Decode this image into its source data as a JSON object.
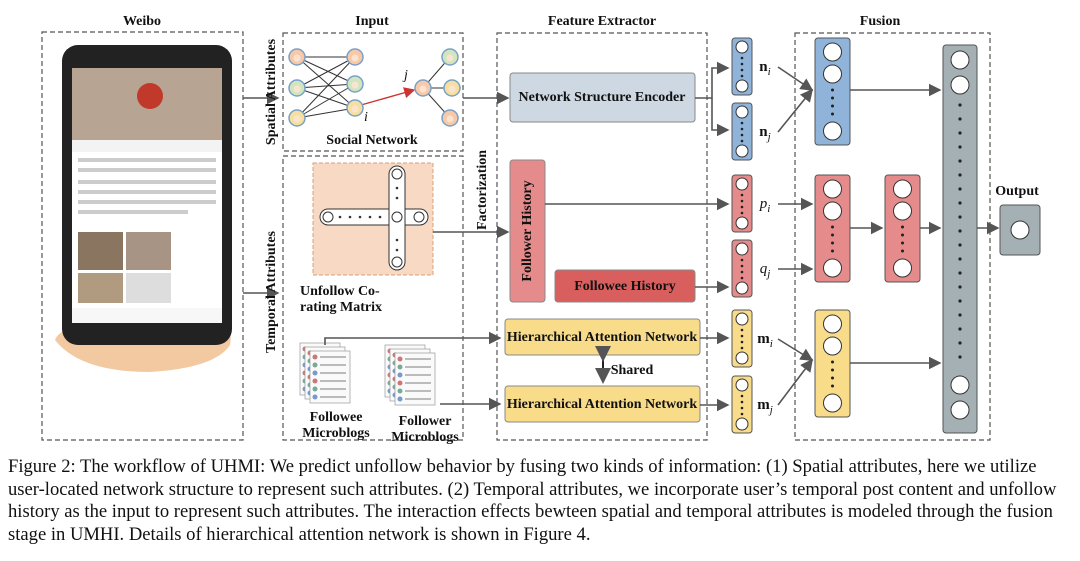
{
  "panels": {
    "weibo": "Weibo",
    "input": "Input",
    "feature_extractor": "Feature Extractor",
    "fusion": "Fusion"
  },
  "input": {
    "spatial_label": "Spatial Attributes",
    "temporal_label": "Temporal Attributes",
    "social_network": "Social Network",
    "node_i": "i",
    "node_j": "j",
    "co_rating_matrix": "Unfollow Co-rating Matrix",
    "followee_microblogs": "Followee Microblogs",
    "follower_microblogs": "Follower Microblogs"
  },
  "feature_extractor": {
    "factorization": "Factorization",
    "network_encoder": "Network Structure Encoder",
    "follower_history": "Follower History",
    "followee_history": "Followee History",
    "han_top": "Hierarchical Attention Network",
    "han_bottom": "Hierarchical Attention Network",
    "shared": "Shared"
  },
  "vectors": [
    {
      "base": "n",
      "sub": "i"
    },
    {
      "base": "n",
      "sub": "j"
    },
    {
      "base": "p",
      "sub": "i"
    },
    {
      "base": "q",
      "sub": "j"
    },
    {
      "base": "m",
      "sub": "i"
    },
    {
      "base": "m",
      "sub": "j"
    }
  ],
  "output": "Output",
  "caption": "Figure 2: The workflow of UHMI: We predict unfollow behavior by fusing two kinds of information: (1) Spatial attributes, here we utilize user-located network structure to represent such attributes. (2) Temporal attributes, we incorporate user’s temporal post content and unfollow history as the input to represent such attributes. The interaction effects bewteen spatial and temporal attributes is modeled through the fusion stage in UMHI. Details of hierarchical attention network is shown in Figure 4."
}
